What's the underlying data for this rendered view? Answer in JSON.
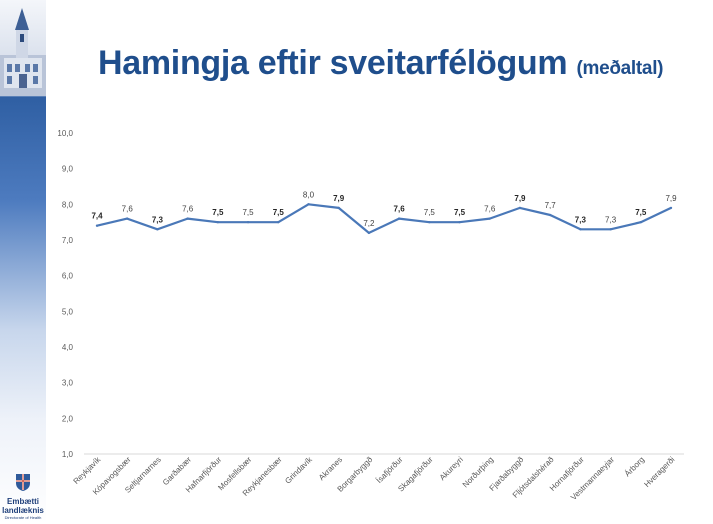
{
  "title": {
    "main": "Hamingja eftir sveitarfélögum",
    "sub": "(meðaltal)"
  },
  "logo": {
    "line1": "Embætti",
    "line2": "landlæknis",
    "line3": "Directorate of Health"
  },
  "colors": {
    "title": "#1f4e8c",
    "line": "#4a78b8"
  },
  "chart_data": {
    "type": "line",
    "title": "Hamingja eftir sveitarfélögum (meðaltal)",
    "xlabel": "",
    "ylabel": "",
    "ylim": [
      1.0,
      10.0
    ],
    "y_ticks": [
      "1,0",
      "2,0",
      "3,0",
      "4,0",
      "5,0",
      "6,0",
      "7,0",
      "8,0",
      "9,0",
      "10,0"
    ],
    "grid": false,
    "categories": [
      "Reykjavík",
      "Kópavogsbær",
      "Seltjarnarnes",
      "Garðabær",
      "Hafnarfjörður",
      "Mosfellsbær",
      "Reykjanesbær",
      "Grindavík",
      "Akranes",
      "Borgarbyggð",
      "Ísafjörður",
      "Skagafjörður",
      "Akureyri",
      "Norðurþing",
      "Fjarðabyggð",
      "Fljótsdalshérað",
      "Hornafjörður",
      "Vestmannaeyjar",
      "Árborg",
      "Hveragerði"
    ],
    "values": [
      7.4,
      7.6,
      7.3,
      7.6,
      7.5,
      7.5,
      7.5,
      8.0,
      7.9,
      7.2,
      7.6,
      7.5,
      7.5,
      7.6,
      7.9,
      7.7,
      7.3,
      7.3,
      7.5,
      7.9
    ],
    "data_labels": [
      "7,4",
      "7,6",
      "7,3",
      "7,6",
      "7,5",
      "7,5",
      "7,5",
      "8,0",
      "7,9",
      "7,2",
      "7,6",
      "7,5",
      "7,5",
      "7,6",
      "7,9",
      "7,7",
      "7,3",
      "7,3",
      "7,5",
      "7,9"
    ],
    "label_bold": [
      true,
      false,
      true,
      false,
      true,
      false,
      true,
      false,
      true,
      false,
      true,
      false,
      true,
      false,
      true,
      false,
      true,
      false,
      true,
      false
    ],
    "series": [
      {
        "name": "Meðaltal",
        "values": [
          7.4,
          7.6,
          7.3,
          7.6,
          7.5,
          7.5,
          7.5,
          8.0,
          7.9,
          7.2,
          7.6,
          7.5,
          7.5,
          7.6,
          7.9,
          7.7,
          7.3,
          7.3,
          7.5,
          7.9
        ]
      }
    ]
  }
}
